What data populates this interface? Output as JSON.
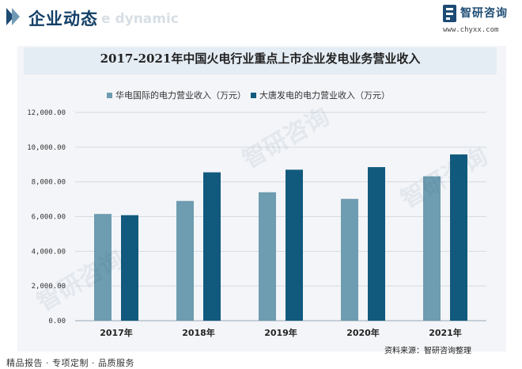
{
  "header": {
    "title": "企业动态",
    "ghost_text": "e dynamic",
    "brand_name": "智研咨询",
    "brand_url": "www.chyxx.com"
  },
  "watermark_text": "智研咨询",
  "chart_data": {
    "type": "bar",
    "title": "2017-2021年中国火电行业重点上市企业发电业务营业收入",
    "categories": [
      "2017年",
      "2018年",
      "2019年",
      "2020年",
      "2021年"
    ],
    "series": [
      {
        "name": "华电国际的电力营业收入（万元）",
        "color": "#6e9cb0",
        "values": [
          6150,
          6900,
          7400,
          7020,
          8320
        ]
      },
      {
        "name": "大唐发电的电力营业收入（万元）",
        "color": "#115a7e",
        "values": [
          6080,
          8550,
          8700,
          8850,
          9580
        ]
      }
    ],
    "ylim": [
      0,
      12000
    ],
    "yticks": [
      "0.00",
      "2,000.00",
      "4,000.00",
      "6,000.00",
      "8,000.00",
      "10,000.00",
      "12,000.00"
    ],
    "grid": true,
    "legend": "top"
  },
  "footer": {
    "left": "精品报告 · 专项定制 · 品质服务",
    "source": "资料来源：智研咨询整理"
  }
}
